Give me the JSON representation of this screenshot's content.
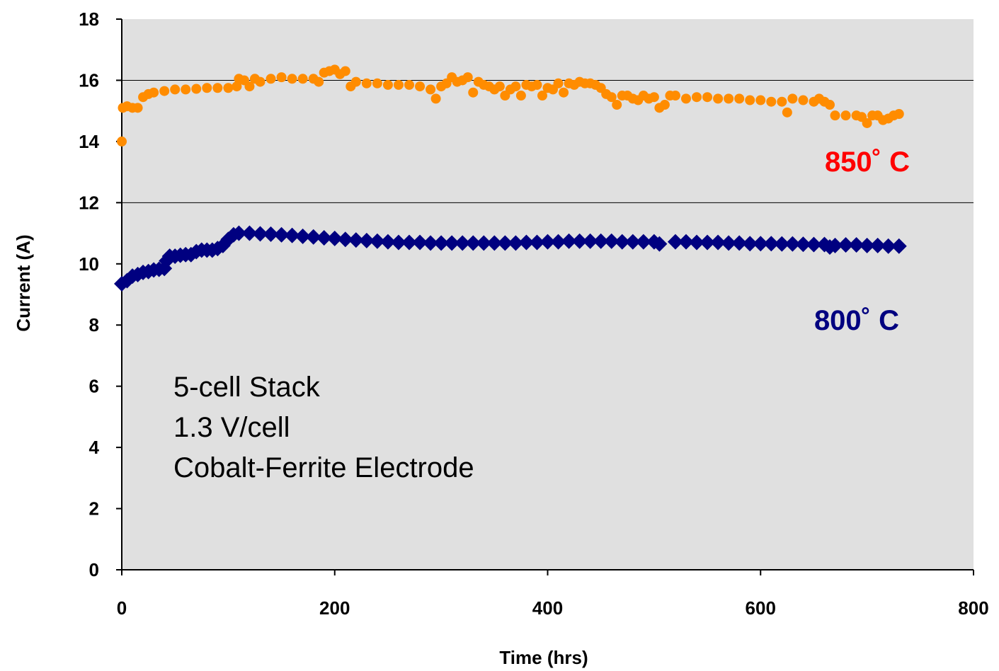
{
  "chart_data": {
    "type": "scatter",
    "title": "",
    "xlabel": "Time (hrs)",
    "ylabel": "Current (A)",
    "xlim": [
      0,
      800
    ],
    "ylim": [
      0,
      18
    ],
    "x_ticks": [
      "0",
      "200",
      "400",
      "600",
      "800"
    ],
    "y_ticks": [
      "0",
      "2",
      "4",
      "6",
      "8",
      "10",
      "12",
      "14",
      "16",
      "18"
    ],
    "grid": "horizontal major lines at 12 and 16",
    "legend": "none; series labelled directly on plot",
    "plot_background": "#e0e0e0",
    "annotation_lines": [
      "5-cell Stack",
      "1.3 V/cell",
      "Cobalt-Ferrite Electrode"
    ],
    "series": [
      {
        "name": "850˚ C",
        "label_color": "#ff0000",
        "marker_color": "#ff8c00",
        "marker": "circle",
        "points": [
          [
            0,
            14.0
          ],
          [
            1,
            15.1
          ],
          [
            5,
            15.15
          ],
          [
            10,
            15.1
          ],
          [
            15,
            15.1
          ],
          [
            20,
            15.45
          ],
          [
            25,
            15.55
          ],
          [
            30,
            15.6
          ],
          [
            40,
            15.65
          ],
          [
            50,
            15.7
          ],
          [
            60,
            15.7
          ],
          [
            70,
            15.72
          ],
          [
            80,
            15.75
          ],
          [
            90,
            15.75
          ],
          [
            100,
            15.75
          ],
          [
            108,
            15.8
          ],
          [
            110,
            16.05
          ],
          [
            115,
            16.0
          ],
          [
            120,
            15.8
          ],
          [
            125,
            16.05
          ],
          [
            130,
            15.95
          ],
          [
            140,
            16.05
          ],
          [
            150,
            16.1
          ],
          [
            160,
            16.05
          ],
          [
            170,
            16.05
          ],
          [
            180,
            16.05
          ],
          [
            185,
            15.95
          ],
          [
            190,
            16.25
          ],
          [
            195,
            16.3
          ],
          [
            200,
            16.35
          ],
          [
            205,
            16.2
          ],
          [
            210,
            16.3
          ],
          [
            215,
            15.8
          ],
          [
            220,
            15.95
          ],
          [
            230,
            15.9
          ],
          [
            240,
            15.9
          ],
          [
            250,
            15.85
          ],
          [
            260,
            15.85
          ],
          [
            270,
            15.85
          ],
          [
            280,
            15.8
          ],
          [
            290,
            15.7
          ],
          [
            295,
            15.4
          ],
          [
            300,
            15.8
          ],
          [
            305,
            15.9
          ],
          [
            310,
            16.1
          ],
          [
            315,
            15.95
          ],
          [
            320,
            16.0
          ],
          [
            325,
            16.1
          ],
          [
            330,
            15.6
          ],
          [
            335,
            15.95
          ],
          [
            340,
            15.85
          ],
          [
            345,
            15.8
          ],
          [
            350,
            15.7
          ],
          [
            355,
            15.8
          ],
          [
            360,
            15.5
          ],
          [
            365,
            15.7
          ],
          [
            370,
            15.8
          ],
          [
            375,
            15.5
          ],
          [
            380,
            15.85
          ],
          [
            385,
            15.8
          ],
          [
            390,
            15.85
          ],
          [
            395,
            15.5
          ],
          [
            400,
            15.75
          ],
          [
            405,
            15.7
          ],
          [
            410,
            15.9
          ],
          [
            415,
            15.6
          ],
          [
            420,
            15.9
          ],
          [
            425,
            15.85
          ],
          [
            430,
            15.95
          ],
          [
            435,
            15.9
          ],
          [
            440,
            15.9
          ],
          [
            445,
            15.85
          ],
          [
            450,
            15.75
          ],
          [
            455,
            15.55
          ],
          [
            460,
            15.45
          ],
          [
            465,
            15.2
          ],
          [
            470,
            15.5
          ],
          [
            475,
            15.5
          ],
          [
            480,
            15.4
          ],
          [
            485,
            15.35
          ],
          [
            490,
            15.5
          ],
          [
            495,
            15.4
          ],
          [
            500,
            15.45
          ],
          [
            505,
            15.1
          ],
          [
            510,
            15.2
          ],
          [
            515,
            15.5
          ],
          [
            520,
            15.5
          ],
          [
            530,
            15.4
          ],
          [
            540,
            15.45
          ],
          [
            550,
            15.45
          ],
          [
            560,
            15.4
          ],
          [
            570,
            15.4
          ],
          [
            580,
            15.4
          ],
          [
            590,
            15.35
          ],
          [
            600,
            15.35
          ],
          [
            610,
            15.3
          ],
          [
            620,
            15.3
          ],
          [
            625,
            14.95
          ],
          [
            630,
            15.4
          ],
          [
            640,
            15.35
          ],
          [
            650,
            15.3
          ],
          [
            655,
            15.4
          ],
          [
            660,
            15.3
          ],
          [
            665,
            15.2
          ],
          [
            670,
            14.85
          ],
          [
            680,
            14.85
          ],
          [
            690,
            14.85
          ],
          [
            695,
            14.8
          ],
          [
            700,
            14.6
          ],
          [
            705,
            14.85
          ],
          [
            710,
            14.85
          ],
          [
            715,
            14.7
          ],
          [
            720,
            14.75
          ],
          [
            725,
            14.85
          ],
          [
            730,
            14.9
          ]
        ]
      },
      {
        "name": "800˚ C",
        "label_color": "#000080",
        "marker_color": "#000080",
        "marker": "diamond",
        "points": [
          [
            0,
            9.35
          ],
          [
            5,
            9.45
          ],
          [
            10,
            9.6
          ],
          [
            15,
            9.65
          ],
          [
            20,
            9.72
          ],
          [
            25,
            9.75
          ],
          [
            30,
            9.8
          ],
          [
            35,
            9.82
          ],
          [
            40,
            9.85
          ],
          [
            42,
            10.1
          ],
          [
            45,
            10.25
          ],
          [
            50,
            10.25
          ],
          [
            55,
            10.28
          ],
          [
            60,
            10.3
          ],
          [
            65,
            10.3
          ],
          [
            70,
            10.4
          ],
          [
            75,
            10.45
          ],
          [
            80,
            10.45
          ],
          [
            85,
            10.45
          ],
          [
            90,
            10.5
          ],
          [
            95,
            10.6
          ],
          [
            100,
            10.8
          ],
          [
            105,
            10.95
          ],
          [
            110,
            11.0
          ],
          [
            120,
            11.0
          ],
          [
            130,
            10.98
          ],
          [
            140,
            10.97
          ],
          [
            150,
            10.95
          ],
          [
            160,
            10.93
          ],
          [
            170,
            10.9
          ],
          [
            180,
            10.88
          ],
          [
            190,
            10.85
          ],
          [
            200,
            10.83
          ],
          [
            210,
            10.8
          ],
          [
            220,
            10.78
          ],
          [
            230,
            10.76
          ],
          [
            240,
            10.74
          ],
          [
            250,
            10.72
          ],
          [
            260,
            10.7
          ],
          [
            270,
            10.7
          ],
          [
            280,
            10.7
          ],
          [
            290,
            10.68
          ],
          [
            300,
            10.68
          ],
          [
            310,
            10.68
          ],
          [
            320,
            10.68
          ],
          [
            330,
            10.68
          ],
          [
            340,
            10.68
          ],
          [
            350,
            10.68
          ],
          [
            360,
            10.68
          ],
          [
            370,
            10.68
          ],
          [
            380,
            10.7
          ],
          [
            390,
            10.7
          ],
          [
            400,
            10.72
          ],
          [
            410,
            10.72
          ],
          [
            420,
            10.74
          ],
          [
            430,
            10.74
          ],
          [
            440,
            10.74
          ],
          [
            450,
            10.74
          ],
          [
            460,
            10.74
          ],
          [
            470,
            10.72
          ],
          [
            480,
            10.72
          ],
          [
            490,
            10.72
          ],
          [
            500,
            10.72
          ],
          [
            505,
            10.65
          ],
          [
            520,
            10.72
          ],
          [
            530,
            10.72
          ],
          [
            540,
            10.7
          ],
          [
            550,
            10.7
          ],
          [
            560,
            10.7
          ],
          [
            570,
            10.68
          ],
          [
            580,
            10.68
          ],
          [
            590,
            10.66
          ],
          [
            600,
            10.66
          ],
          [
            610,
            10.66
          ],
          [
            620,
            10.65
          ],
          [
            630,
            10.65
          ],
          [
            640,
            10.64
          ],
          [
            650,
            10.63
          ],
          [
            660,
            10.63
          ],
          [
            665,
            10.55
          ],
          [
            670,
            10.6
          ],
          [
            680,
            10.62
          ],
          [
            690,
            10.62
          ],
          [
            700,
            10.6
          ],
          [
            710,
            10.6
          ],
          [
            720,
            10.58
          ],
          [
            730,
            10.58
          ]
        ]
      }
    ]
  }
}
